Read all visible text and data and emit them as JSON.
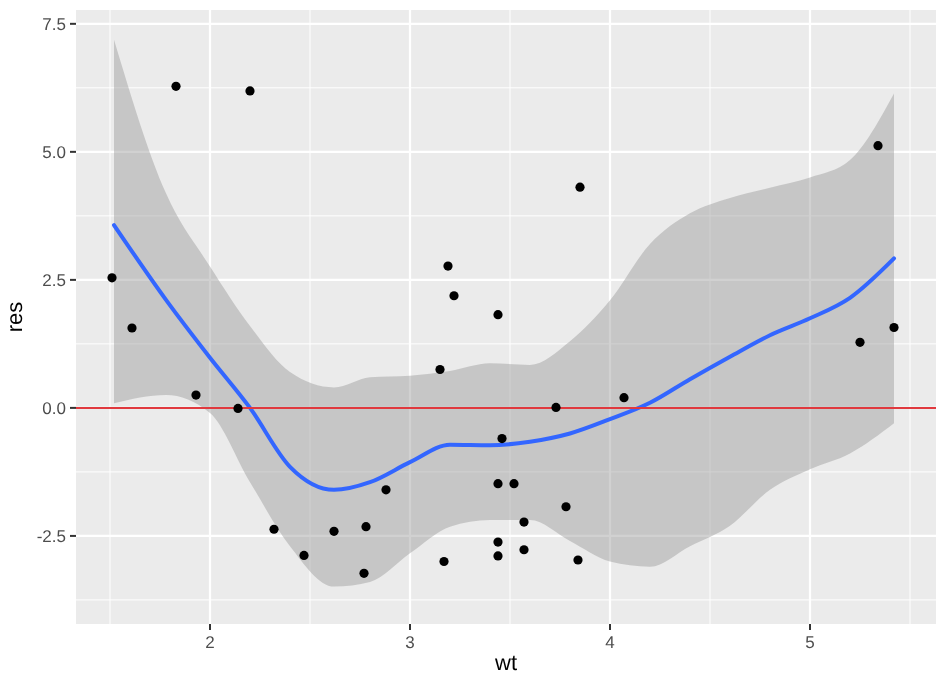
{
  "chart_data": {
    "type": "scatter",
    "xlabel": "wt",
    "ylabel": "res",
    "xlim": [
      1.33,
      5.63
    ],
    "ylim": [
      -4.22,
      7.77
    ],
    "xticks": [
      2,
      3,
      4,
      5
    ],
    "yticks": [
      {
        "value": -2.5,
        "label": "-2.5"
      },
      {
        "value": 0,
        "label": "0.0"
      },
      {
        "value": 2.5,
        "label": "2.5"
      },
      {
        "value": 5,
        "label": "5.0"
      },
      {
        "value": 7.5,
        "label": "7.5"
      }
    ],
    "grid": true,
    "ref_lines": [
      {
        "axis": "y",
        "value": 0,
        "color": "#e0393e"
      }
    ],
    "series": [
      {
        "color": "#000000",
        "x": [
          1.51,
          1.61,
          1.83,
          2.2,
          1.93,
          2.14,
          2.32,
          2.47,
          2.62,
          2.78,
          2.77,
          2.88,
          3.15,
          3.19,
          3.22,
          3.17,
          3.44,
          3.85,
          3.73,
          4.07,
          3.46,
          3.44,
          3.52,
          3.78,
          3.57,
          3.44,
          3.44,
          3.57,
          3.84,
          5.25,
          5.34,
          5.42
        ],
        "values": [
          2.54,
          1.56,
          6.28,
          6.19,
          0.25,
          -0.01,
          -2.37,
          -2.88,
          -2.41,
          -2.32,
          -3.23,
          -1.6,
          0.75,
          2.77,
          2.19,
          -3.0,
          1.82,
          4.31,
          0.01,
          0.2,
          -0.6,
          -1.48,
          -1.48,
          -1.93,
          -2.23,
          -2.62,
          -2.89,
          -2.77,
          -2.97,
          1.28,
          5.12,
          1.57
        ]
      },
      {
        "type": "line",
        "color": "#3366ff",
        "x": [
          1.52,
          1.78,
          2.0,
          2.2,
          2.4,
          2.62,
          2.8,
          3.0,
          3.2,
          3.4,
          3.6,
          3.8,
          4.0,
          4.2,
          4.4,
          4.6,
          4.8,
          5.0,
          5.2,
          5.42
        ],
        "values": [
          3.57,
          2.11,
          0.98,
          0,
          -1.15,
          -1.6,
          -1.45,
          -1.06,
          -0.72,
          -0.73,
          -0.66,
          -0.5,
          -0.22,
          0.1,
          0.56,
          1.0,
          1.42,
          1.75,
          2.15,
          2.92
        ],
        "upper": [
          7.19,
          4.19,
          2.76,
          1.6,
          0.7,
          0.4,
          0.6,
          0.63,
          0.72,
          0.87,
          0.84,
          1.3,
          2.1,
          3.2,
          3.8,
          4.1,
          4.3,
          4.5,
          4.84,
          6.14
        ],
        "lower": [
          0.09,
          0.25,
          -0.1,
          -1.45,
          -2.7,
          -3.49,
          -3.4,
          -2.84,
          -2.32,
          -2.19,
          -2.19,
          -2.6,
          -3.0,
          -3.1,
          -2.7,
          -2.3,
          -1.6,
          -1.2,
          -0.89,
          -0.3
        ]
      }
    ]
  }
}
